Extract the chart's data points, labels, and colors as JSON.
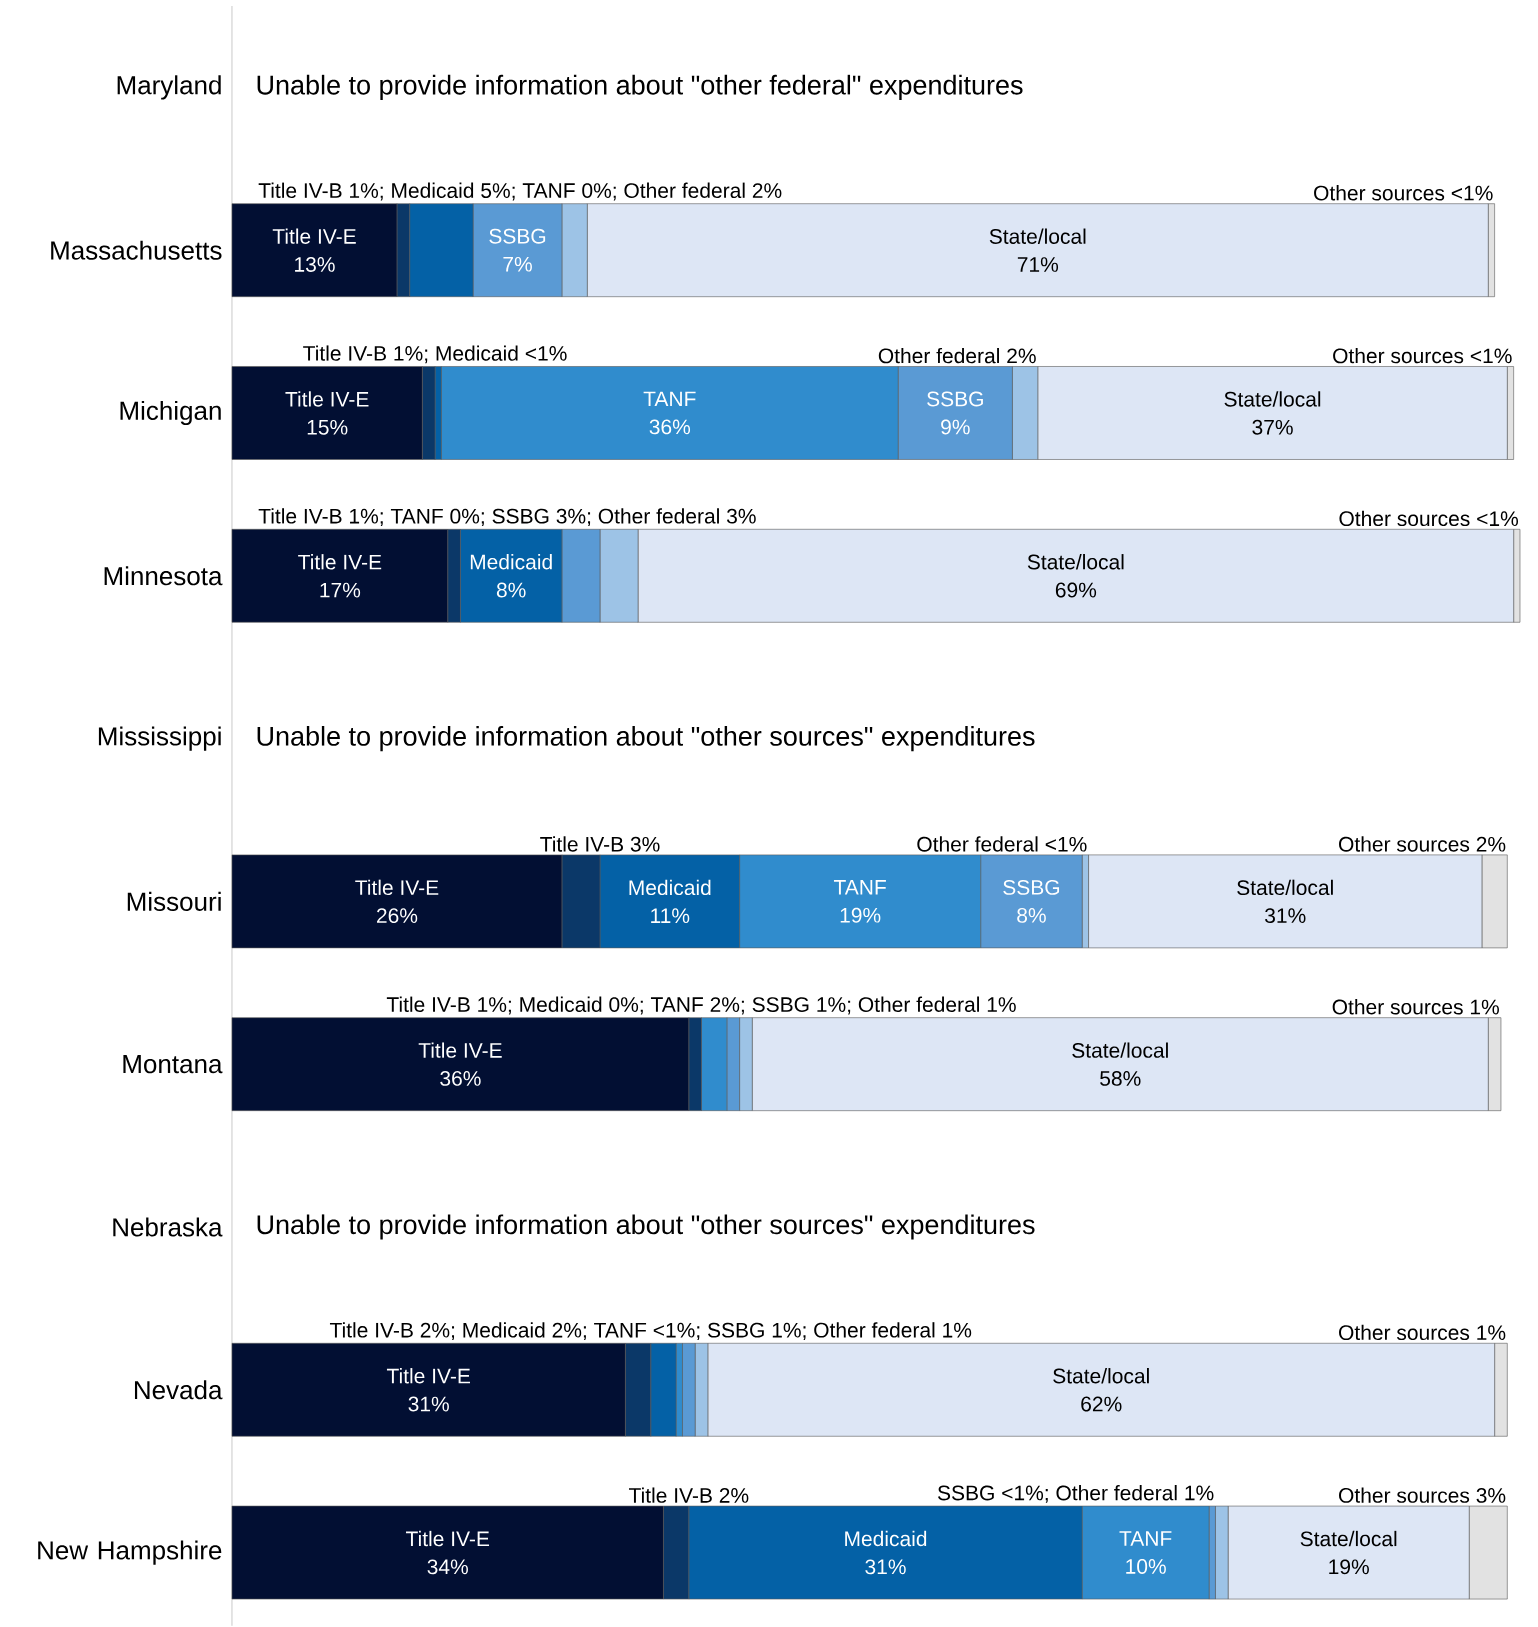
{
  "chart_data": {
    "type": "bar",
    "orientation": "horizontal",
    "stacked": true,
    "categories": [
      "Maryland",
      "Massachusetts",
      "Michigan",
      "Minnesota",
      "Mississippi",
      "Missouri",
      "Montana",
      "Nebraska",
      "Nevada",
      "New Hampshire"
    ],
    "series": [
      {
        "name": "Title IV-E",
        "color": "#020f33",
        "values": [
          null,
          13,
          15,
          17,
          null,
          26,
          36,
          null,
          31,
          34
        ],
        "value_labels": [
          null,
          "13%",
          "15%",
          "17%",
          null,
          "26%",
          "36%",
          null,
          "31%",
          "34%"
        ]
      },
      {
        "color": "#0b3868",
        "values": [
          null,
          1,
          1,
          1,
          null,
          3,
          1,
          null,
          2,
          2
        ]
      },
      {
        "name": "Medicaid",
        "color": "#0461a6",
        "values": [
          null,
          5,
          0.5,
          8,
          null,
          11,
          0,
          null,
          2,
          31
        ],
        "value_labels": [
          null,
          null,
          null,
          "8%",
          null,
          "11%",
          null,
          null,
          null,
          "31%"
        ]
      },
      {
        "name": "TANF",
        "color": "#308ccd",
        "values": [
          null,
          0,
          36,
          0,
          null,
          19,
          2,
          null,
          0.5,
          10
        ],
        "value_labels": [
          null,
          null,
          "36%",
          null,
          null,
          "19%",
          null,
          null,
          null,
          "10%"
        ]
      },
      {
        "name": "SSBG",
        "color": "#5a9ad4",
        "values": [
          null,
          7,
          9,
          3,
          null,
          8,
          1,
          null,
          1,
          0.5
        ],
        "value_labels": [
          null,
          "7%",
          "9%",
          null,
          null,
          "8%",
          null,
          null,
          null,
          null
        ]
      },
      {
        "color": "#9dc3e6",
        "values": [
          null,
          2,
          2,
          3,
          null,
          0.5,
          1,
          null,
          1,
          1
        ]
      },
      {
        "name": "State/local",
        "color": "#dde6f5",
        "values": [
          null,
          71,
          37,
          69,
          null,
          31,
          58,
          null,
          62,
          19
        ],
        "value_labels": [
          null,
          "71%",
          "37%",
          "69%",
          null,
          "31%",
          "58%",
          null,
          "62%",
          "19%"
        ]
      },
      {
        "color": "#e2e2e2",
        "values": [
          null,
          0.5,
          0.5,
          0.5,
          null,
          2,
          1,
          null,
          1,
          3
        ]
      }
    ],
    "annotations": [
      "Unable to provide information about \"other federal\" expenditures",
      {
        "text": "Title IV-B 1%; Medicaid 5%; TANF 0%; Other federal 2%",
        "x": 14,
        "y": "Massachusetts"
      },
      {
        "text": "Other sources <1%",
        "x": 99.5,
        "y": "Massachusetts"
      },
      {
        "text": "Title IV-B 1%; Medicaid <1%",
        "x": 16,
        "y": "Michigan"
      },
      {
        "text": "Other federal 2%",
        "x": 63.5,
        "y": "Michigan"
      },
      {
        "text": "Other sources <1%",
        "x": 101,
        "y": "Michigan"
      },
      {
        "text": "Title IV-B 1%; TANF 0%; SSBG 3%; Other federal 3%",
        "x": 18,
        "y": "Minnesota"
      },
      {
        "text": "Other sources <1%",
        "x": 101.5,
        "y": "Minnesota"
      },
      "Unable to provide information about \"other sources\" expenditures",
      {
        "text": "Title IV-B 3%",
        "x": 29,
        "y": "Missouri"
      },
      {
        "text": "Other federal <1%",
        "x": 67.5,
        "y": "Missouri"
      },
      {
        "text": "Other sources 2%",
        "x": 100.5,
        "y": "Missouri"
      },
      {
        "text": "Title IV-B 1%; Medicaid 0%; TANF 2%; SSBG 1%; Other federal 1%",
        "x": 37,
        "y": "Montana"
      },
      {
        "text": "Other sources 1%",
        "x": 100,
        "y": "Montana"
      },
      "Unable to provide information about \"other sources\" expenditures",
      {
        "text": "Title IV-B 2%; Medicaid 2%; TANF <1%; SSBG 1%; Other federal 1%",
        "x": 33,
        "y": "Nevada"
      },
      {
        "text": "Other sources 1%",
        "x": 100.5,
        "y": "Nevada"
      },
      {
        "text": "Title IV-B 2%",
        "x": 36,
        "y": "New Hampshire"
      },
      {
        "text": "SSBG <1%; Other federal 1%",
        "x": 77.5,
        "y": "New Hampshire"
      },
      {
        "text": "Other sources 3%",
        "x": 100.5,
        "y": "New Hampshire"
      }
    ]
  }
}
